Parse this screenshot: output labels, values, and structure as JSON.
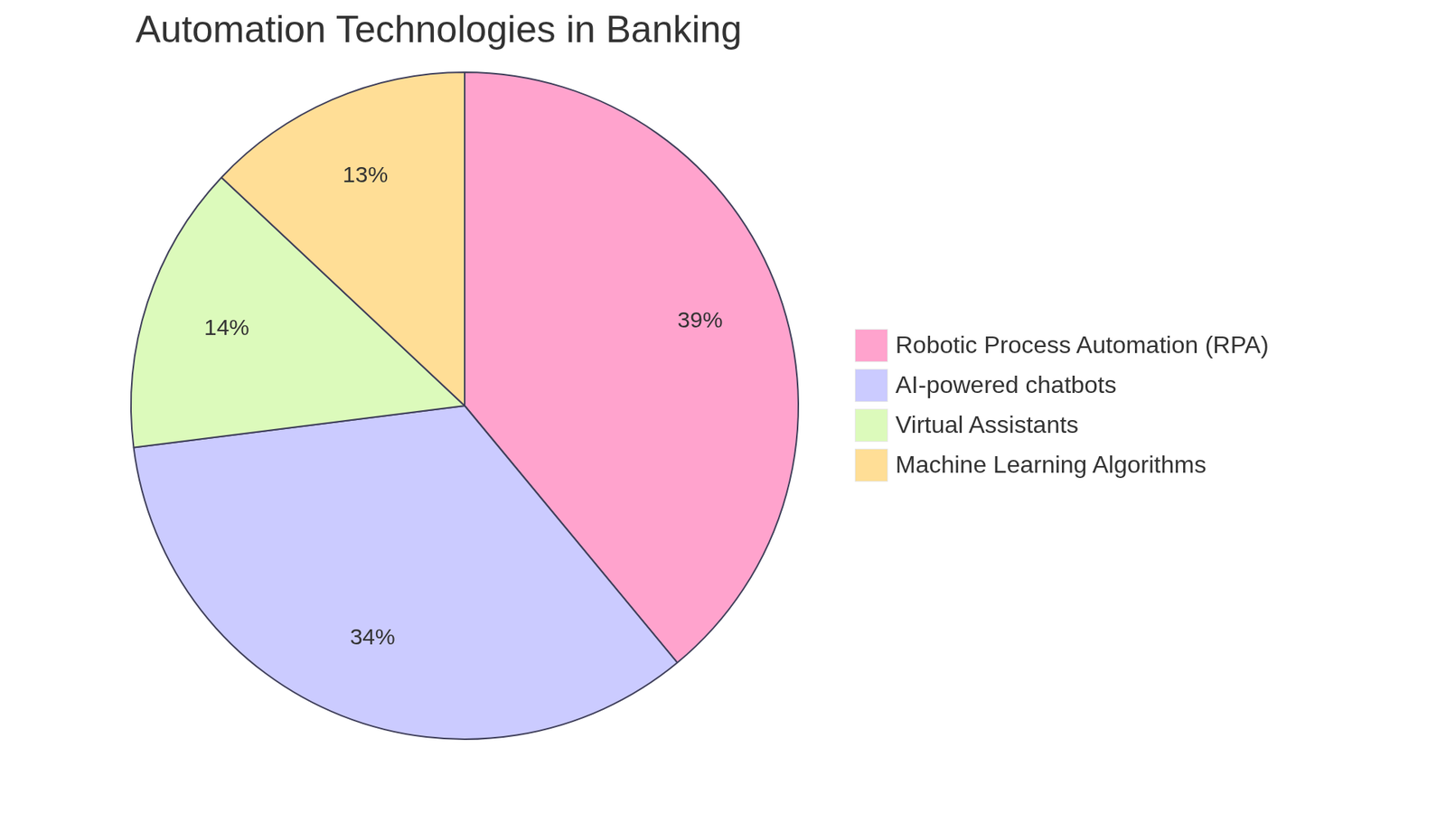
{
  "chart_data": {
    "type": "pie",
    "title": "Automation Technologies in Banking",
    "categories": [
      "Robotic Process Automation (RPA)",
      "AI-powered chatbots",
      "Virtual Assistants",
      "Machine Learning Algorithms"
    ],
    "values": [
      39,
      34,
      14,
      13
    ],
    "value_labels": [
      "39%",
      "34%",
      "14%",
      "13%"
    ],
    "colors": [
      "#ffa3cd",
      "#cbcbff",
      "#dcfabb",
      "#ffde96"
    ],
    "legend": "right",
    "data_labels": true
  }
}
